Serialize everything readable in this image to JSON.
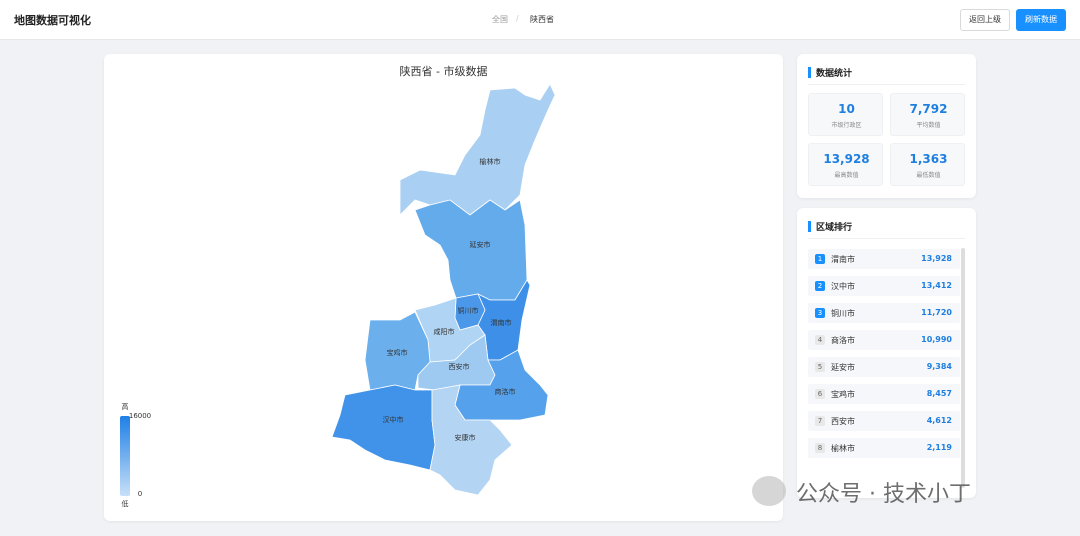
{
  "header": {
    "title": "地图数据可视化",
    "breadcrumb": [
      "全国",
      "陕西省"
    ],
    "separator": "/",
    "buttons": [
      "返回上级",
      "刷新数据"
    ]
  },
  "map": {
    "title": "陕西省 - 市级数据",
    "regions": [
      {
        "name": "榆林市",
        "color": "#a9cff2"
      },
      {
        "name": "延安市",
        "color": "#64abeb"
      },
      {
        "name": "渭南市",
        "color": "#3e8fe8"
      },
      {
        "name": "铜川市",
        "color": "#4b98ea"
      },
      {
        "name": "咸阳市",
        "color": "#b0d4f3"
      },
      {
        "name": "宝鸡市",
        "color": "#6bb0ec"
      },
      {
        "name": "西安市",
        "color": "#9ec9f0"
      },
      {
        "name": "商洛市",
        "color": "#55a1ec"
      },
      {
        "name": "汉中市",
        "color": "#4093e9"
      },
      {
        "name": "安康市",
        "color": "#b3d5f3"
      }
    ],
    "legend": {
      "high": "高",
      "low": "低",
      "max": 16000,
      "min": 0
    }
  },
  "stats": {
    "title": "数据统计",
    "items": [
      {
        "value": 10,
        "label": "市级行政区"
      },
      {
        "value": "7,792",
        "label": "平均数值"
      },
      {
        "value": "13,928",
        "label": "最高数值"
      },
      {
        "value": "1,363",
        "label": "最低数值"
      }
    ]
  },
  "ranking": {
    "title": "区域排行",
    "rows": [
      {
        "rank": 1,
        "name": "渭南市",
        "value": "13,928"
      },
      {
        "rank": 2,
        "name": "汉中市",
        "value": "13,412"
      },
      {
        "rank": 3,
        "name": "铜川市",
        "value": "11,720"
      },
      {
        "rank": 4,
        "name": "商洛市",
        "value": "10,990"
      },
      {
        "rank": 5,
        "name": "延安市",
        "value": "9,384"
      },
      {
        "rank": 6,
        "name": "宝鸡市",
        "value": "8,457"
      },
      {
        "rank": 7,
        "name": "西安市",
        "value": "4,612"
      },
      {
        "rank": 8,
        "name": "榆林市",
        "value": "2,119"
      }
    ]
  },
  "watermark": "公众号 · 技术小丁"
}
